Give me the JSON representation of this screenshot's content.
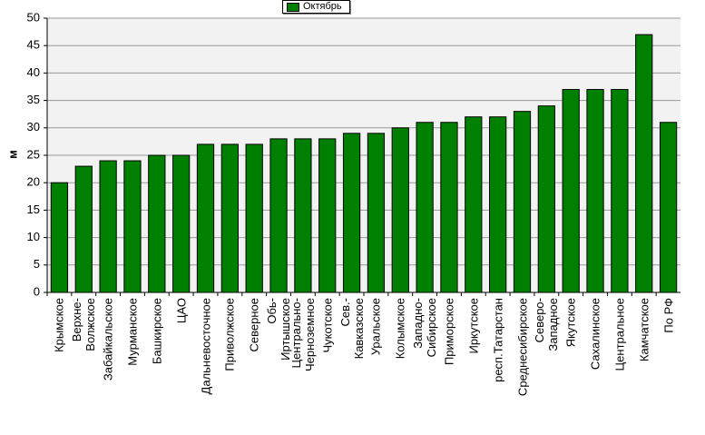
{
  "chart_data": {
    "type": "bar",
    "ylabel": "м",
    "categories": [
      "Крымское",
      "Верхне-\nВолжское",
      "Забайкальское",
      "Мурманское",
      "Башкирское",
      "ЦАО",
      "Дальневосточное",
      "Приволжское",
      "Северное",
      "Обь-\nИртышское",
      "Центрально-\nЧерноземное",
      "Чукотское",
      "Сев.-\nКавказское",
      "Уральское",
      "Колымское",
      "Западно-\nСибирское",
      "Приморское",
      "Иркутское",
      "респ.Татарстан",
      "Среднесибирское",
      "Северо-\nЗападное",
      "Якутское",
      "Сахалинское",
      "Центральное",
      "Камчатское",
      "По РФ"
    ],
    "series": [
      {
        "name": "Октябрь",
        "color": "#008000",
        "values": [
          20,
          23,
          24,
          24,
          25,
          25,
          27,
          27,
          27,
          28,
          28,
          28,
          29,
          29,
          30,
          31,
          31,
          32,
          32,
          33,
          34,
          37,
          37,
          37,
          47,
          31
        ]
      }
    ],
    "ylim": [
      0,
      50
    ],
    "yticks": [
      0,
      5,
      10,
      15,
      20,
      25,
      30,
      35,
      40,
      45,
      50
    ],
    "grid": true,
    "legend": "top"
  }
}
